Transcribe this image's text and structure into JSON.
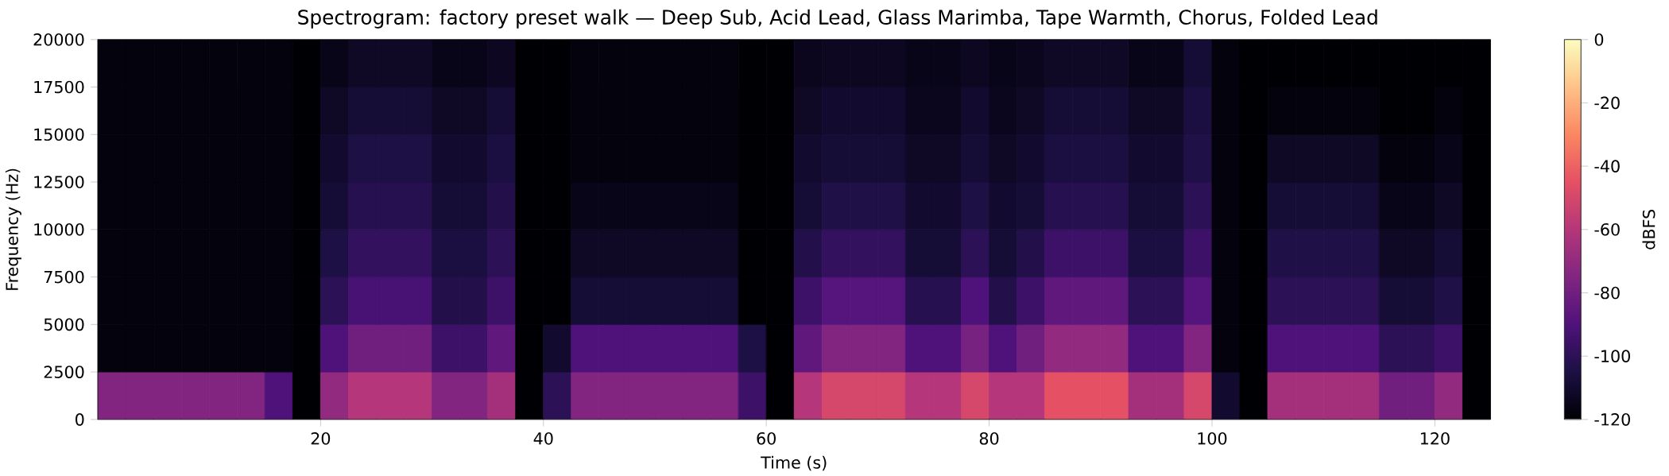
{
  "chart_data": {
    "type": "heatmap",
    "title": "Spectrogram: factory preset walk — Deep Sub, Acid Lead, Glass Marimba, Tape Warmth, Chorus, Folded Lead",
    "xlabel": "Time (s)",
    "ylabel": "Frequency (Hz)",
    "clabel": "dBFS",
    "xlim": [
      0,
      125
    ],
    "ylim": [
      0,
      20000
    ],
    "xticks": [
      20,
      40,
      60,
      80,
      100,
      120
    ],
    "yticks": [
      0,
      2500,
      5000,
      7500,
      10000,
      12500,
      15000,
      17500,
      20000
    ],
    "clim": [
      -120,
      0
    ],
    "cticks": [
      0,
      -20,
      -40,
      -60,
      -80,
      -100,
      -120
    ],
    "x": [
      1.25,
      3.75,
      6.25,
      8.75,
      11.25,
      13.75,
      16.25,
      18.75,
      21.25,
      23.75,
      26.25,
      28.75,
      31.25,
      33.75,
      36.25,
      38.75,
      41.25,
      43.75,
      46.25,
      48.75,
      51.25,
      53.75,
      56.25,
      58.75,
      61.25,
      63.75,
      66.25,
      68.75,
      71.25,
      73.75,
      76.25,
      78.75,
      81.25,
      83.75,
      86.25,
      88.75,
      91.25,
      93.75,
      96.25,
      98.75,
      101.25,
      103.75,
      106.25,
      108.75,
      111.25,
      113.75,
      116.25,
      118.75,
      121.25,
      123.75
    ],
    "cells": [
      [
        -118,
        -118,
        -118,
        -118,
        -118,
        -118,
        -118,
        -120,
        -115,
        -112,
        -112,
        -112,
        -115,
        -115,
        -113,
        -120,
        -120,
        -118,
        -118,
        -118,
        -118,
        -118,
        -118,
        -120,
        -120,
        -114,
        -113,
        -113,
        -113,
        -115,
        -115,
        -113,
        -115,
        -114,
        -112,
        -112,
        -112,
        -115,
        -115,
        -108,
        -118,
        -120,
        -120,
        -120,
        -120,
        -120,
        -120,
        -120,
        -120,
        -120
      ],
      [
        -118,
        -118,
        -118,
        -118,
        -118,
        -118,
        -118,
        -120,
        -112,
        -108,
        -108,
        -108,
        -112,
        -112,
        -108,
        -120,
        -120,
        -118,
        -118,
        -118,
        -118,
        -118,
        -118,
        -120,
        -120,
        -112,
        -110,
        -110,
        -110,
        -114,
        -114,
        -110,
        -114,
        -112,
        -108,
        -108,
        -108,
        -112,
        -112,
        -106,
        -118,
        -120,
        -118,
        -118,
        -118,
        -118,
        -120,
        -120,
        -118,
        -120
      ],
      [
        -118,
        -118,
        -118,
        -118,
        -118,
        -118,
        -118,
        -120,
        -110,
        -105,
        -105,
        -105,
        -110,
        -110,
        -106,
        -120,
        -120,
        -118,
        -118,
        -118,
        -118,
        -118,
        -118,
        -120,
        -120,
        -110,
        -108,
        -108,
        -108,
        -112,
        -112,
        -108,
        -112,
        -110,
        -106,
        -106,
        -106,
        -110,
        -110,
        -104,
        -118,
        -120,
        -112,
        -112,
        -112,
        -112,
        -118,
        -118,
        -115,
        -120
      ],
      [
        -118,
        -118,
        -118,
        -118,
        -118,
        -118,
        -118,
        -120,
        -108,
        -102,
        -102,
        -102,
        -108,
        -108,
        -103,
        -120,
        -120,
        -115,
        -115,
        -115,
        -115,
        -115,
        -115,
        -120,
        -120,
        -108,
        -104,
        -104,
        -104,
        -110,
        -110,
        -105,
        -110,
        -108,
        -102,
        -102,
        -102,
        -108,
        -108,
        -100,
        -118,
        -120,
        -108,
        -108,
        -108,
        -108,
        -115,
        -115,
        -112,
        -120
      ],
      [
        -118,
        -118,
        -118,
        -118,
        -118,
        -118,
        -118,
        -120,
        -105,
        -98,
        -98,
        -98,
        -106,
        -106,
        -100,
        -120,
        -120,
        -112,
        -112,
        -112,
        -112,
        -112,
        -112,
        -120,
        -120,
        -103,
        -98,
        -98,
        -98,
        -108,
        -108,
        -100,
        -108,
        -103,
        -95,
        -95,
        -95,
        -106,
        -106,
        -95,
        -118,
        -120,
        -104,
        -104,
        -104,
        -104,
        -112,
        -112,
        -108,
        -120
      ],
      [
        -118,
        -118,
        -118,
        -118,
        -118,
        -118,
        -118,
        -120,
        -100,
        -92,
        -92,
        -92,
        -103,
        -103,
        -95,
        -120,
        -120,
        -108,
        -108,
        -108,
        -108,
        -108,
        -108,
        -120,
        -120,
        -95,
        -88,
        -88,
        -88,
        -102,
        -102,
        -90,
        -103,
        -95,
        -85,
        -85,
        -85,
        -100,
        -100,
        -88,
        -118,
        -120,
        -100,
        -100,
        -100,
        -100,
        -108,
        -108,
        -104,
        -120
      ],
      [
        -118,
        -118,
        -118,
        -118,
        -118,
        -118,
        -118,
        -120,
        -90,
        -80,
        -80,
        -80,
        -95,
        -95,
        -85,
        -120,
        -110,
        -90,
        -90,
        -90,
        -90,
        -90,
        -90,
        -105,
        -120,
        -85,
        -75,
        -75,
        -75,
        -90,
        -90,
        -78,
        -90,
        -80,
        -70,
        -70,
        -70,
        -90,
        -90,
        -75,
        -118,
        -120,
        -90,
        -90,
        -90,
        -90,
        -100,
        -100,
        -95,
        -120
      ],
      [
        -75,
        -75,
        -75,
        -75,
        -75,
        -75,
        -90,
        -120,
        -70,
        -60,
        -60,
        -60,
        -75,
        -75,
        -65,
        -120,
        -100,
        -75,
        -75,
        -75,
        -75,
        -75,
        -75,
        -95,
        -120,
        -60,
        -50,
        -50,
        -50,
        -60,
        -60,
        -50,
        -60,
        -60,
        -45,
        -45,
        -45,
        -65,
        -65,
        -50,
        -110,
        -120,
        -65,
        -65,
        -65,
        -65,
        -80,
        -80,
        -70,
        -120
      ]
    ]
  }
}
